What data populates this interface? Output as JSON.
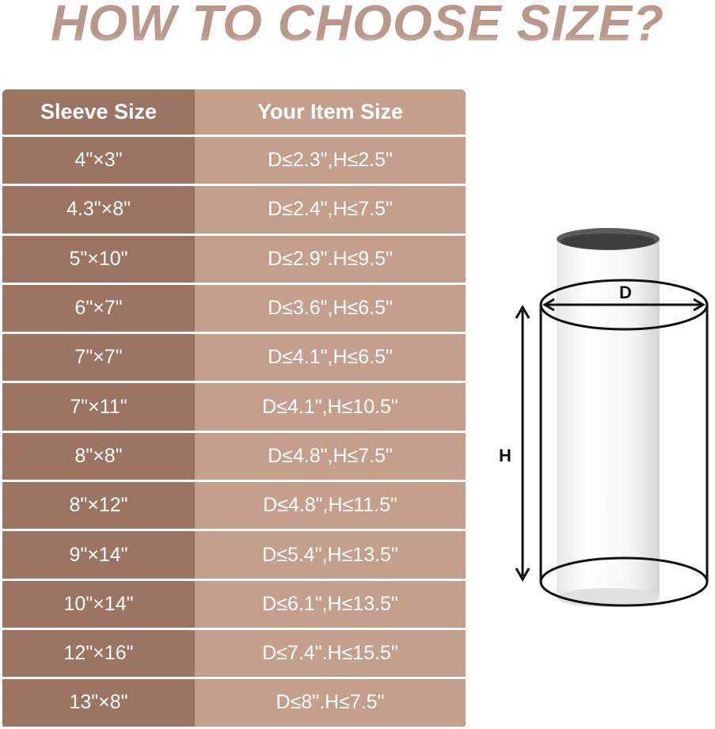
{
  "title": "HOW TO CHOOSE SIZE?",
  "table": {
    "headers": [
      "Sleeve Size",
      "Your Item Size"
    ],
    "rows": [
      [
        "4\"×3\"",
        "D≤2.3\",H≤2.5\""
      ],
      [
        "4.3\"×8\"",
        "D≤2.4\",H≤7.5\""
      ],
      [
        "5\"×10\"",
        "D≤2.9\".H≤9.5\""
      ],
      [
        "6\"×7\"",
        "D≤3.6\",H≤6.5\""
      ],
      [
        "7\"×7\"",
        "D≤4.1\",H≤6.5\""
      ],
      [
        "7\"×11\"",
        "D≤4.1\",H≤10.5\""
      ],
      [
        "8\"×8\"",
        "D≤4.8\",H≤7.5\""
      ],
      [
        "8\"×12\"",
        "D≤4.8\",H≤11.5\""
      ],
      [
        "9\"×14\"",
        "D≤5.4\",H≤13.5\""
      ],
      [
        "10\"×14\"",
        "D≤6.1\",H≤13.5\""
      ],
      [
        "12\"×16\"",
        "D≤7.4\".H≤15.5\""
      ],
      [
        "13\"×8\"",
        "D≤8\".H≤7.5\""
      ]
    ]
  },
  "diagram": {
    "diameter_label": "D",
    "height_label": "H"
  },
  "colors": {
    "title": "#b9978a",
    "col1": "#9b7562",
    "col2": "#c39f8c"
  }
}
